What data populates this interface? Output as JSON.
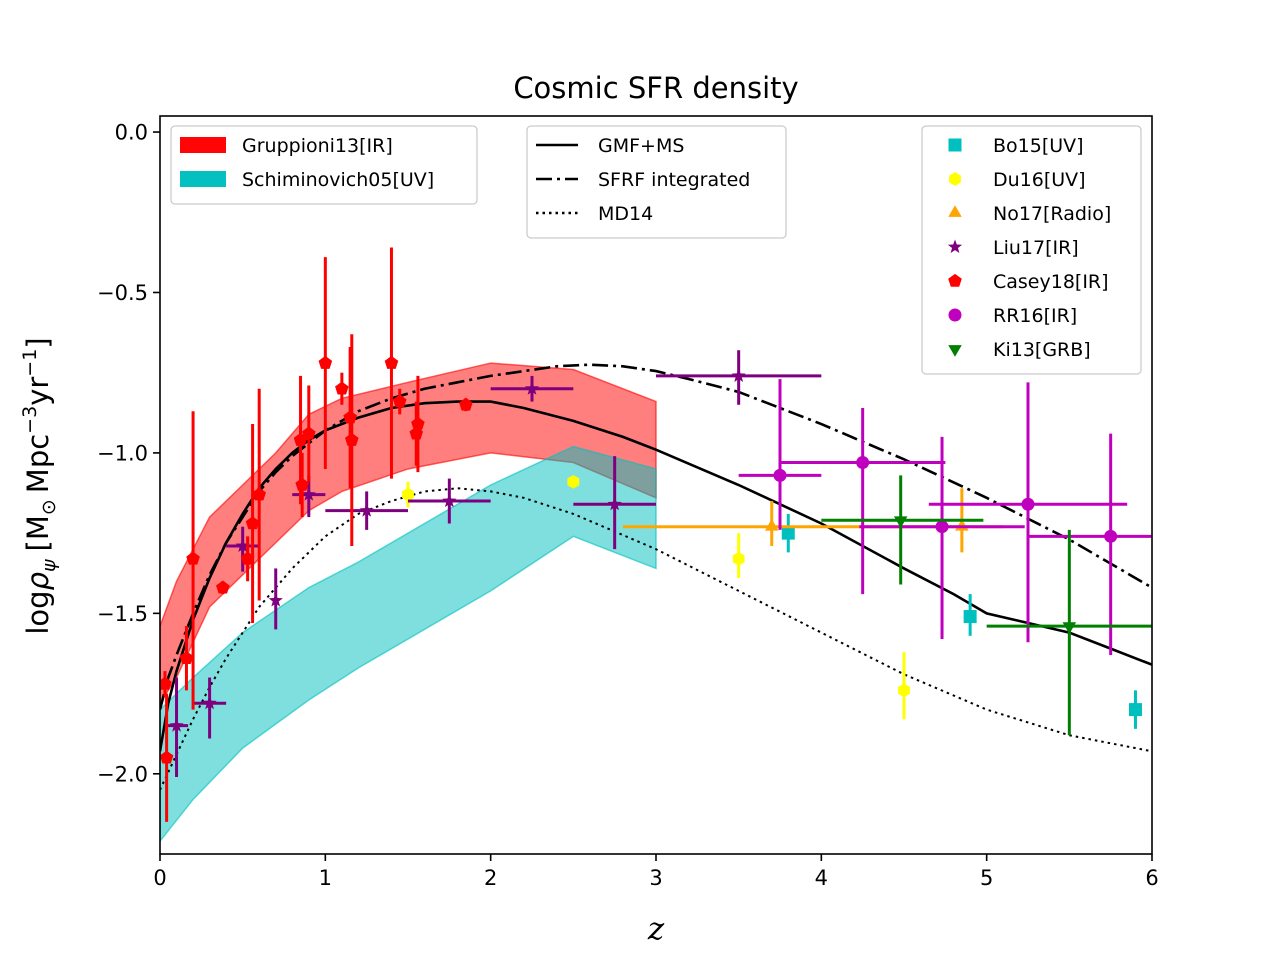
{
  "chart_data": {
    "type": "scatter",
    "title": "Cosmic SFR density",
    "xlabel": "z",
    "ylabel": "logρ_ψ [M_⊙ Mpc^−3 yr^−1]",
    "ylabel_parts": {
      "log": "log",
      "rho": "ρ",
      "psi": "ψ",
      "unit_open": "[M",
      "sun": "⊙",
      "mpc": "Mpc",
      "exp1": "−3",
      "yr": "yr",
      "exp2": "−1",
      "close": "]"
    },
    "xlim": [
      0,
      6
    ],
    "ylim": [
      -2.25,
      0.05
    ],
    "xticks": [
      {
        "value": 0,
        "label": "0"
      },
      {
        "value": 1,
        "label": "1"
      },
      {
        "value": 2,
        "label": "2"
      },
      {
        "value": 3,
        "label": "3"
      },
      {
        "value": 4,
        "label": "4"
      },
      {
        "value": 5,
        "label": "5"
      },
      {
        "value": 6,
        "label": "6"
      }
    ],
    "yticks": [
      {
        "value": 0.0,
        "label": "0.0"
      },
      {
        "value": -0.5,
        "label": "−0.5"
      },
      {
        "value": -1.0,
        "label": "−1.0"
      },
      {
        "value": -1.5,
        "label": "−1.5"
      },
      {
        "value": -2.0,
        "label": "−2.0"
      }
    ],
    "grid": false,
    "bands": [
      {
        "name": "Gruppioni13[IR]",
        "color": "#ff0000",
        "opacity": 0.5,
        "x": [
          0.0,
          0.1,
          0.3,
          0.5,
          0.7,
          0.9,
          1.1,
          1.5,
          2.0,
          2.5,
          3.0
        ],
        "upper": [
          -1.54,
          -1.4,
          -1.2,
          -1.1,
          -1.0,
          -0.88,
          -0.83,
          -0.78,
          -0.72,
          -0.74,
          -0.84
        ],
        "lower": [
          -1.78,
          -1.7,
          -1.48,
          -1.38,
          -1.28,
          -1.18,
          -1.12,
          -1.05,
          -1.0,
          -1.03,
          -1.14
        ]
      },
      {
        "name": "Schiminovich05[UV]",
        "color": "#00bfbf",
        "opacity": 0.5,
        "x": [
          0.0,
          0.2,
          0.5,
          0.9,
          1.2,
          2.0,
          2.5,
          3.0
        ],
        "upper": [
          -1.8,
          -1.7,
          -1.56,
          -1.42,
          -1.34,
          -1.1,
          -0.98,
          -1.05
        ],
        "lower": [
          -2.21,
          -2.08,
          -1.92,
          -1.77,
          -1.67,
          -1.43,
          -1.26,
          -1.36
        ]
      }
    ],
    "series": [
      {
        "name": "GMF+MS",
        "style": "solid",
        "color": "#000000",
        "x": [
          0.0,
          0.05,
          0.1,
          0.2,
          0.3,
          0.4,
          0.5,
          0.6,
          0.7,
          0.8,
          0.9,
          1.0,
          1.2,
          1.4,
          1.6,
          1.8,
          2.0,
          2.2,
          2.5,
          2.8,
          3.0,
          3.5,
          4.0,
          4.5,
          4.8,
          5.0,
          5.5,
          5.75,
          6.0
        ],
        "y": [
          -1.93,
          -1.78,
          -1.68,
          -1.52,
          -1.39,
          -1.28,
          -1.19,
          -1.11,
          -1.05,
          -1.0,
          -0.96,
          -0.93,
          -0.89,
          -0.86,
          -0.845,
          -0.84,
          -0.84,
          -0.86,
          -0.9,
          -0.95,
          -0.99,
          -1.1,
          -1.22,
          -1.36,
          -1.44,
          -1.5,
          -1.56,
          -1.61,
          -1.66
        ]
      },
      {
        "name": "SFRF integrated",
        "style": "dashdot",
        "color": "#000000",
        "x": [
          0.0,
          0.05,
          0.1,
          0.2,
          0.3,
          0.4,
          0.5,
          0.6,
          0.7,
          0.8,
          0.9,
          1.0,
          1.2,
          1.4,
          1.6,
          1.8,
          2.0,
          2.2,
          2.4,
          2.6,
          2.8,
          3.0,
          3.2,
          3.5,
          3.8,
          4.0,
          4.5,
          5.0,
          5.5,
          6.0
        ],
        "y": [
          -1.8,
          -1.7,
          -1.63,
          -1.5,
          -1.38,
          -1.28,
          -1.2,
          -1.12,
          -1.06,
          -1.01,
          -0.97,
          -0.93,
          -0.87,
          -0.83,
          -0.8,
          -0.78,
          -0.76,
          -0.745,
          -0.73,
          -0.725,
          -0.73,
          -0.745,
          -0.77,
          -0.81,
          -0.87,
          -0.91,
          -1.02,
          -1.14,
          -1.27,
          -1.42
        ]
      },
      {
        "name": "MD14",
        "style": "dotted",
        "color": "#000000",
        "x": [
          0.0,
          0.1,
          0.2,
          0.3,
          0.4,
          0.5,
          0.6,
          0.7,
          0.8,
          0.9,
          1.0,
          1.2,
          1.4,
          1.6,
          1.8,
          2.0,
          2.2,
          2.5,
          3.0,
          3.5,
          4.0,
          4.5,
          5.0,
          5.5,
          6.0
        ],
        "y": [
          -2.05,
          -1.94,
          -1.83,
          -1.73,
          -1.64,
          -1.56,
          -1.48,
          -1.42,
          -1.36,
          -1.31,
          -1.26,
          -1.19,
          -1.15,
          -1.12,
          -1.11,
          -1.12,
          -1.14,
          -1.19,
          -1.3,
          -1.43,
          -1.56,
          -1.69,
          -1.8,
          -1.88,
          -1.93
        ]
      }
    ],
    "points": [
      {
        "name": "Bo15[UV]",
        "marker": "square",
        "color": "#00bfbf",
        "data": [
          {
            "x": 3.8,
            "y": -1.25,
            "xerr": [
              0,
              0
            ],
            "yerr": [
              0.06,
              0.06
            ]
          },
          {
            "x": 4.9,
            "y": -1.51,
            "xerr": [
              0,
              0
            ],
            "yerr": [
              0.06,
              0.07
            ]
          },
          {
            "x": 5.9,
            "y": -1.8,
            "xerr": [
              0,
              0
            ],
            "yerr": [
              0.06,
              0.06
            ]
          }
        ]
      },
      {
        "name": "Du16[UV]",
        "marker": "hexagon",
        "color": "#ffff00",
        "data": [
          {
            "x": 1.5,
            "y": -1.13,
            "xerr": [
              0,
              0
            ],
            "yerr": [
              0.04,
              0.04
            ]
          },
          {
            "x": 2.5,
            "y": -1.09,
            "xerr": [
              0,
              0
            ],
            "yerr": [
              0.01,
              0.01
            ]
          },
          {
            "x": 3.5,
            "y": -1.33,
            "xerr": [
              0,
              0
            ],
            "yerr": [
              0.06,
              0.08
            ]
          },
          {
            "x": 4.5,
            "y": -1.74,
            "xerr": [
              0,
              0
            ],
            "yerr": [
              0.09,
              0.12
            ]
          }
        ]
      },
      {
        "name": "No17[Radio]",
        "marker": "triangle-up",
        "color": "#ffa500",
        "data": [
          {
            "x": 3.7,
            "y": -1.23,
            "xerr": [
              0.9,
              1.4
            ],
            "yerr": [
              0.06,
              0.08
            ]
          },
          {
            "x": 4.85,
            "y": -1.23,
            "xerr": [
              0,
              0
            ],
            "yerr": [
              0.08,
              0.12
            ]
          }
        ]
      },
      {
        "name": "Liu17[IR]",
        "marker": "star",
        "color": "#7f007f",
        "data": [
          {
            "x": 0.1,
            "y": -1.85,
            "xerr": [
              0.07,
              0.07
            ],
            "yerr": [
              0.16,
              0.15
            ]
          },
          {
            "x": 0.3,
            "y": -1.78,
            "xerr": [
              0.1,
              0.1
            ],
            "yerr": [
              0.11,
              0.08
            ]
          },
          {
            "x": 0.5,
            "y": -1.29,
            "xerr": [
              0.1,
              0.1
            ],
            "yerr": [
              0.08,
              0.06
            ]
          },
          {
            "x": 0.7,
            "y": -1.46,
            "xerr": [
              0,
              0
            ],
            "yerr": [
              0.09,
              0.1
            ]
          },
          {
            "x": 0.9,
            "y": -1.13,
            "xerr": [
              0.1,
              0.1
            ],
            "yerr": [
              0.07,
              0.06
            ]
          },
          {
            "x": 1.25,
            "y": -1.18,
            "xerr": [
              0.25,
              0.25
            ],
            "yerr": [
              0.06,
              0.06
            ]
          },
          {
            "x": 1.75,
            "y": -1.15,
            "xerr": [
              0.25,
              0.25
            ],
            "yerr": [
              0.07,
              0.07
            ]
          },
          {
            "x": 2.25,
            "y": -0.8,
            "xerr": [
              0.25,
              0.25
            ],
            "yerr": [
              0.04,
              0.04
            ]
          },
          {
            "x": 2.75,
            "y": -1.16,
            "xerr": [
              0.25,
              0.25
            ],
            "yerr": [
              0.14,
              0.15
            ]
          },
          {
            "x": 3.5,
            "y": -0.76,
            "xerr": [
              0.5,
              0.5
            ],
            "yerr": [
              0.09,
              0.08
            ]
          }
        ]
      },
      {
        "name": "Casey18[IR]",
        "marker": "pentagon",
        "color": "#ff0000",
        "data": [
          {
            "x": 0.03,
            "y": -1.72,
            "xerr": [
              0,
              0
            ],
            "yerr": [
              0.04,
              0.04
            ]
          },
          {
            "x": 0.04,
            "y": -1.95,
            "xerr": [
              0,
              0
            ],
            "yerr": [
              0.2,
              0.2
            ]
          },
          {
            "x": 0.16,
            "y": -1.64,
            "xerr": [
              0,
              0
            ],
            "yerr": [
              0.1,
              0.1
            ]
          },
          {
            "x": 0.2,
            "y": -1.33,
            "xerr": [
              0,
              0
            ],
            "yerr": [
              0.47,
              0.46
            ]
          },
          {
            "x": 0.38,
            "y": -1.42,
            "xerr": [
              0,
              0
            ],
            "yerr": [
              0.02,
              0.02
            ]
          },
          {
            "x": 0.53,
            "y": -1.33,
            "xerr": [
              0,
              0
            ],
            "yerr": [
              0.07,
              0.07
            ]
          },
          {
            "x": 0.56,
            "y": -1.22,
            "xerr": [
              0,
              0
            ],
            "yerr": [
              0.31,
              0.31
            ]
          },
          {
            "x": 0.6,
            "y": -1.13,
            "xerr": [
              0,
              0
            ],
            "yerr": [
              0.33,
              0.33
            ]
          },
          {
            "x": 0.85,
            "y": -0.96,
            "xerr": [
              0,
              0
            ],
            "yerr": [
              0.2,
              0.2
            ]
          },
          {
            "x": 0.86,
            "y": -1.1,
            "xerr": [
              0,
              0
            ],
            "yerr": [
              0.1,
              0.1
            ]
          },
          {
            "x": 0.9,
            "y": -0.94,
            "xerr": [
              0,
              0
            ],
            "yerr": [
              0.15,
              0.15
            ]
          },
          {
            "x": 1.0,
            "y": -0.72,
            "xerr": [
              0,
              0
            ],
            "yerr": [
              0.33,
              0.33
            ]
          },
          {
            "x": 1.1,
            "y": -0.8,
            "xerr": [
              0,
              0
            ],
            "yerr": [
              0.05,
              0.05
            ]
          },
          {
            "x": 1.15,
            "y": -0.89,
            "xerr": [
              0,
              0
            ],
            "yerr": [
              0.22,
              0.22
            ]
          },
          {
            "x": 1.16,
            "y": -0.96,
            "xerr": [
              0,
              0
            ],
            "yerr": [
              0.33,
              0.33
            ]
          },
          {
            "x": 1.4,
            "y": -0.72,
            "xerr": [
              0,
              0
            ],
            "yerr": [
              0.36,
              0.36
            ]
          },
          {
            "x": 1.45,
            "y": -0.84,
            "xerr": [
              0,
              0
            ],
            "yerr": [
              0.04,
              0.04
            ]
          },
          {
            "x": 1.55,
            "y": -0.94,
            "xerr": [
              0,
              0
            ],
            "yerr": [
              0.1,
              0.1
            ]
          },
          {
            "x": 1.56,
            "y": -0.91,
            "xerr": [
              0,
              0
            ],
            "yerr": [
              0.15,
              0.15
            ]
          },
          {
            "x": 1.85,
            "y": -0.85,
            "xerr": [
              0,
              0
            ],
            "yerr": [
              0.02,
              0.02
            ]
          }
        ]
      },
      {
        "name": "RR16[IR]",
        "marker": "circle",
        "color": "#bf00bf",
        "data": [
          {
            "x": 3.75,
            "y": -1.07,
            "xerr": [
              0.25,
              0.25
            ],
            "yerr": [
              0.17,
              0.3
            ]
          },
          {
            "x": 4.25,
            "y": -1.03,
            "xerr": [
              0.5,
              0.5
            ],
            "yerr": [
              0.41,
              0.17
            ]
          },
          {
            "x": 4.73,
            "y": -1.23,
            "xerr": [
              0.5,
              0.5
            ],
            "yerr": [
              0.35,
              0.28
            ]
          },
          {
            "x": 5.25,
            "y": -1.16,
            "xerr": [
              0.6,
              0.6
            ],
            "yerr": [
              0.43,
              0.38
            ]
          },
          {
            "x": 5.75,
            "y": -1.26,
            "xerr": [
              0.5,
              0.5
            ],
            "yerr": [
              0.37,
              0.32
            ]
          }
        ]
      },
      {
        "name": "Ki13[GRB]",
        "marker": "triangle-down",
        "color": "#007f00",
        "data": [
          {
            "x": 4.48,
            "y": -1.21,
            "xerr": [
              0.48,
              0.5
            ],
            "yerr": [
              0.2,
              0.14
            ]
          },
          {
            "x": 5.5,
            "y": -1.54,
            "xerr": [
              0.5,
              0.5
            ],
            "yerr": [
              0.34,
              0.3
            ]
          }
        ]
      }
    ],
    "legends": [
      {
        "placement": "upper-left",
        "entries": [
          "Gruppioni13[IR]",
          "Schiminovich05[UV]"
        ]
      },
      {
        "placement": "upper-center",
        "entries": [
          "GMF+MS",
          "SFRF integrated",
          "MD14"
        ]
      },
      {
        "placement": "upper-right",
        "entries": [
          "Bo15[UV]",
          "Du16[UV]",
          "No17[Radio]",
          "Liu17[IR]",
          "Casey18[IR]",
          "RR16[IR]",
          "Ki13[GRB]"
        ]
      }
    ]
  }
}
